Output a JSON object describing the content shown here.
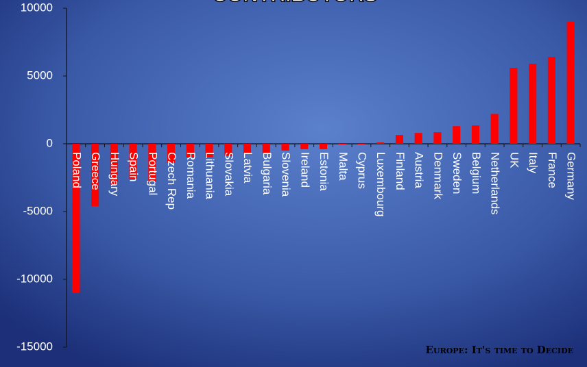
{
  "chart_data": {
    "type": "bar",
    "title": "CONTRIBUTORS",
    "annotation": "Europe: It's time to Decide",
    "categories": [
      "Poland",
      "Greece",
      "Hungary",
      "Spain",
      "Portugal",
      "Czech Rep",
      "Romania",
      "Lithuania",
      "Slovakia",
      "Latvia",
      "Bulgaria",
      "Slovenia",
      "Ireland",
      "Estonia",
      "Malta",
      "Cyprus",
      "Luxembourg",
      "Finland",
      "Austria",
      "Denmark",
      "Sweden",
      "Belgium",
      "Netherlands",
      "UK",
      "Italy",
      "France",
      "Germany"
    ],
    "values": [
      -11000,
      -4600,
      -3000,
      -2600,
      -2800,
      -1400,
      -1000,
      -1000,
      -900,
      -700,
      -700,
      -500,
      -400,
      -400,
      -50,
      -50,
      100,
      650,
      800,
      850,
      1300,
      1350,
      2200,
      5600,
      5900,
      6400,
      9000
    ],
    "color": "#ff0000",
    "ylim": [
      -15000,
      10000
    ],
    "yticks": [
      -15000,
      -10000,
      -5000,
      0,
      5000,
      10000
    ]
  }
}
